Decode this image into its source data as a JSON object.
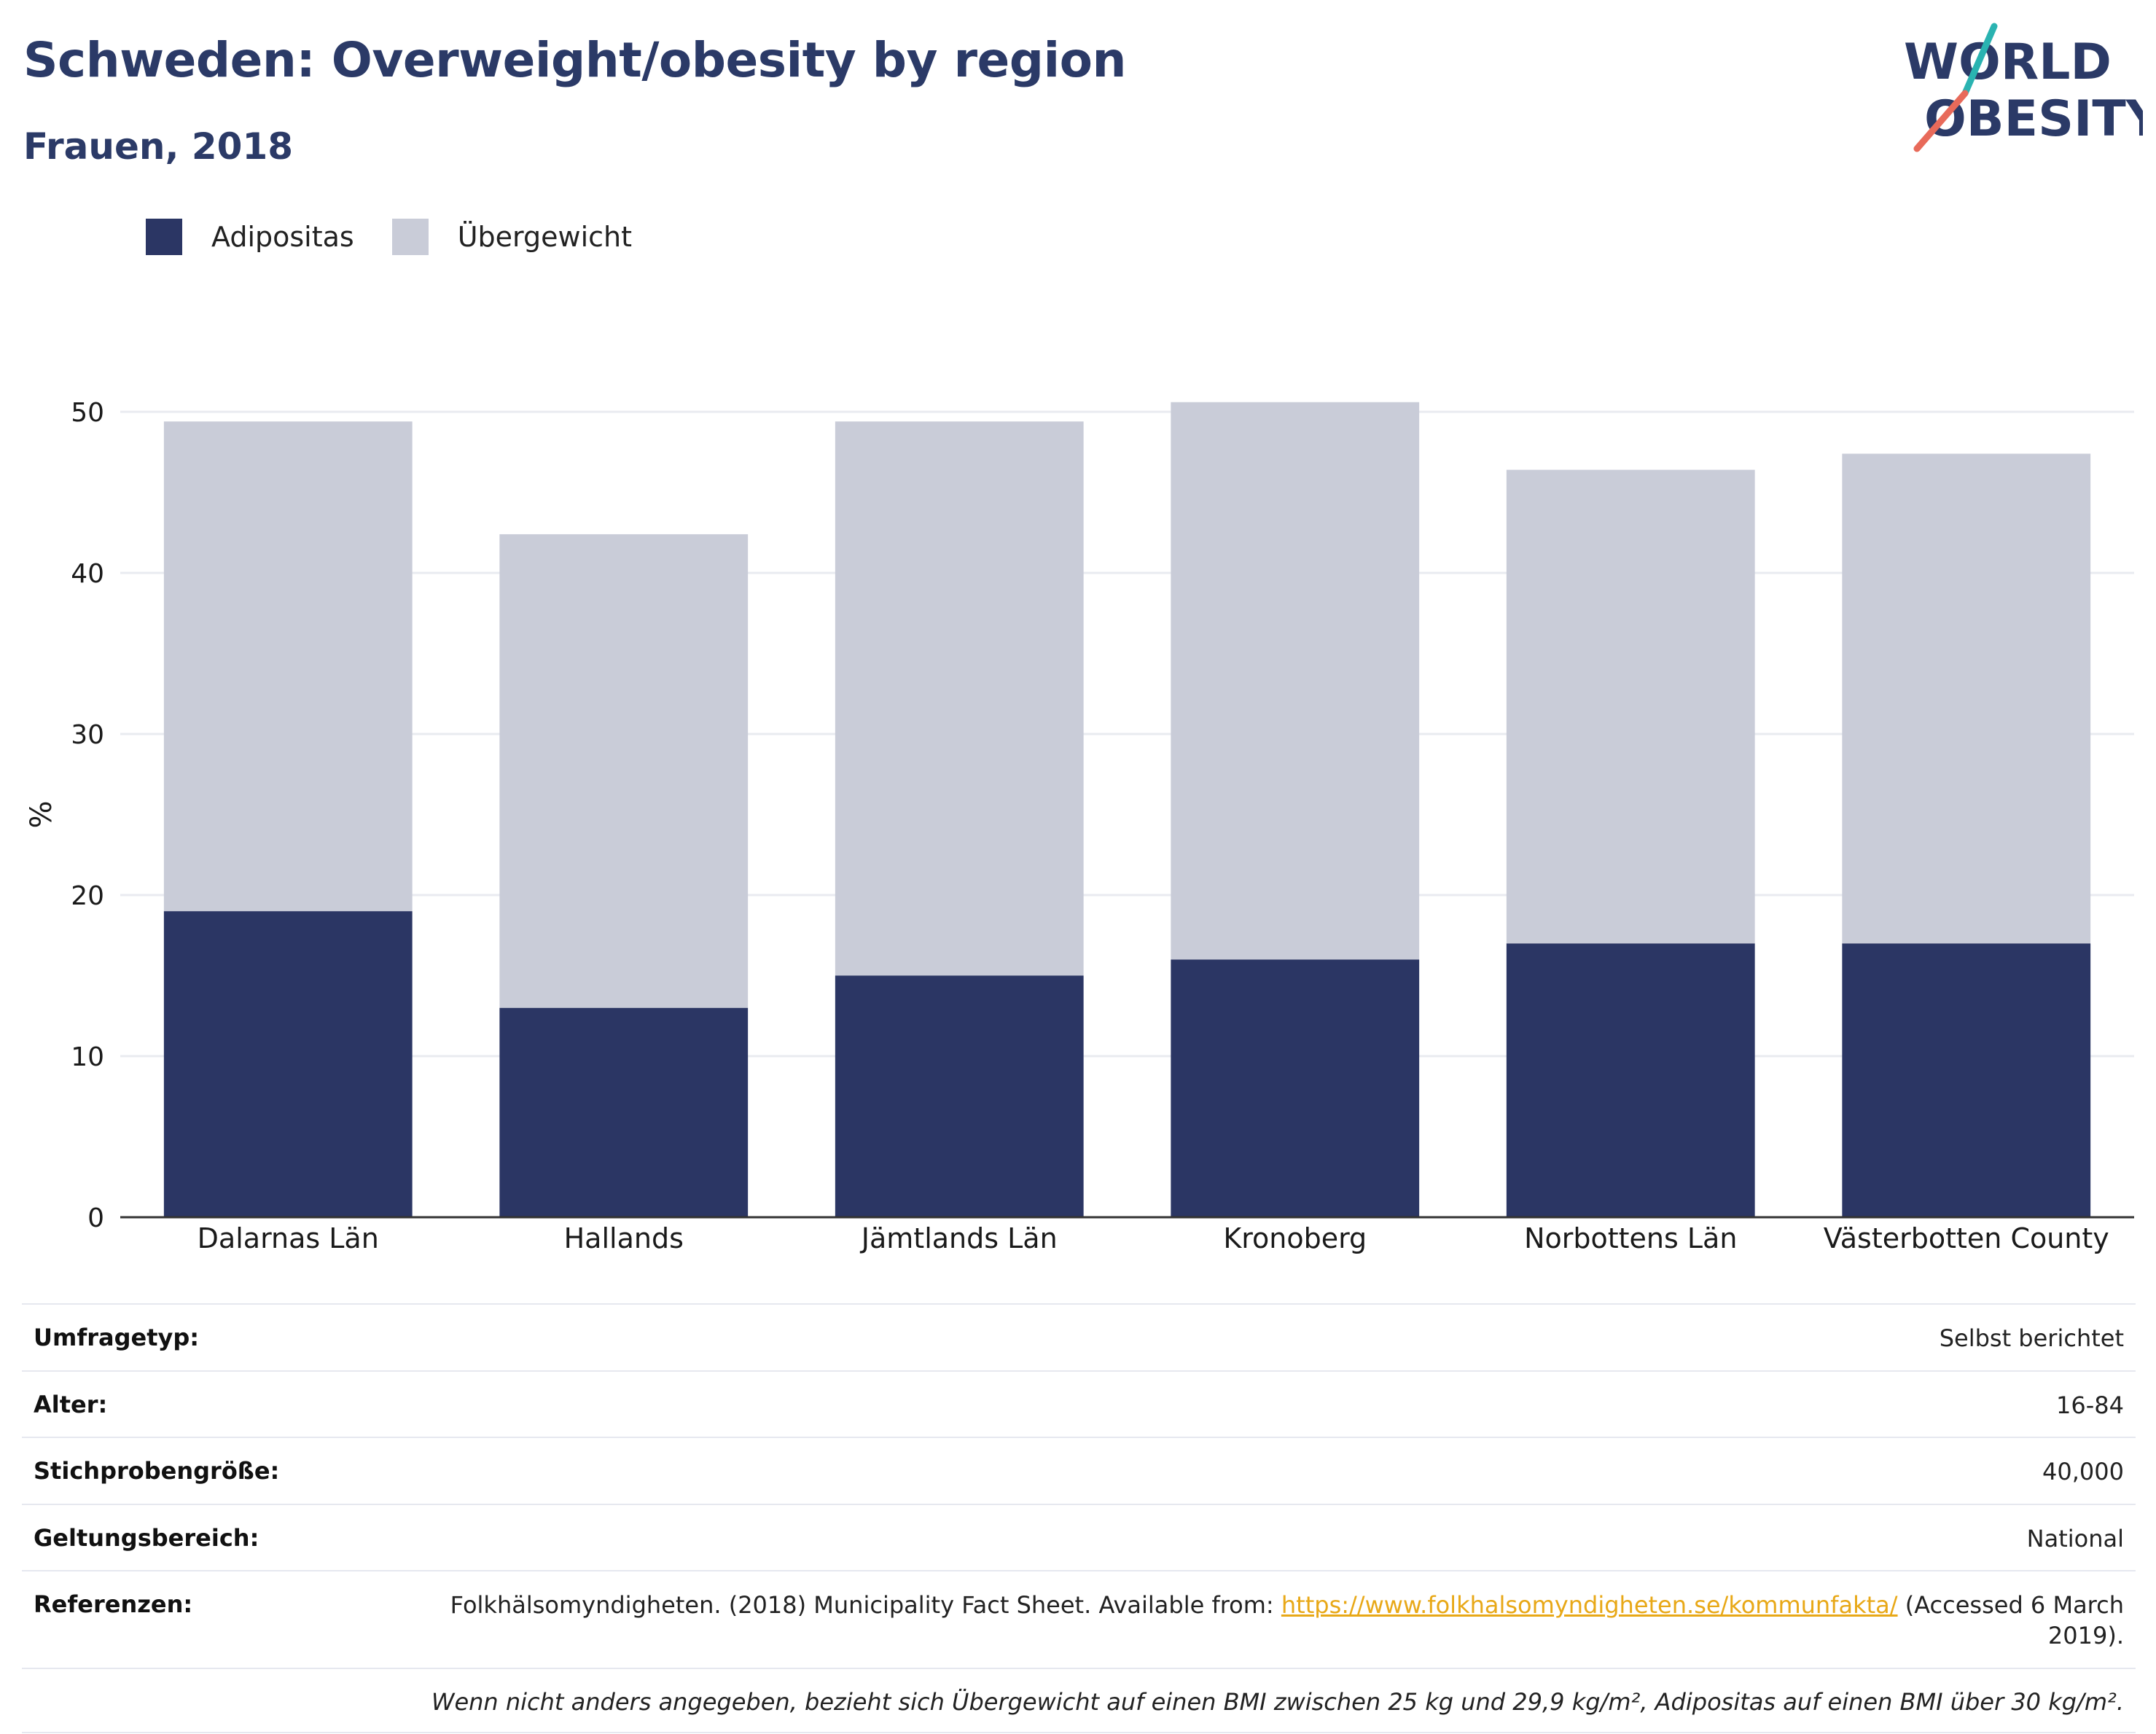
{
  "header": {
    "title": "Schweden: Overweight/obesity by region",
    "subtitle": "Frauen, 2018"
  },
  "logo": {
    "line1": "WORLD",
    "line2": "OBESITY",
    "colors": {
      "text": "#2b3a67",
      "slash_top": "#2ab3b1",
      "slash_bottom": "#e86a5a"
    }
  },
  "legend": [
    {
      "label": "Adipositas",
      "color": "#2b3664"
    },
    {
      "label": "Übergewicht",
      "color": "#c9ccd8"
    }
  ],
  "chart_data": {
    "type": "bar",
    "stacked": true,
    "categories": [
      "Dalarnas Län",
      "Hallands",
      "Jämtlands Län",
      "Kronoberg",
      "Norbottens Län",
      "Västerbotten County"
    ],
    "series": [
      {
        "name": "Adipositas",
        "color": "#2b3664",
        "values": [
          19,
          13,
          15,
          16,
          17,
          17
        ]
      },
      {
        "name": "Übergewicht",
        "color": "#c9ccd8",
        "values": [
          30.4,
          29.4,
          34.4,
          34.6,
          29.4,
          30.4
        ]
      }
    ],
    "ylabel": "%",
    "ylim": [
      0,
      50
    ],
    "yticks": [
      0,
      10,
      20,
      30,
      40,
      50
    ],
    "grid": true
  },
  "info": {
    "rows": [
      {
        "label": "Umfragetyp:",
        "value": "Selbst berichtet"
      },
      {
        "label": "Alter:",
        "value": "16-84"
      },
      {
        "label": "Stichprobengröße:",
        "value": "40,000"
      },
      {
        "label": "Geltungsbereich:",
        "value": "National"
      }
    ],
    "reference": {
      "label": "Referenzen:",
      "text_before": "Folkhälsomyndigheten. (2018) Municipality Fact Sheet. Available from: ",
      "link": "https://www.folkhalsomyndigheten.se/kommunfakta/",
      "text_after": " (Accessed 6 March 2019)."
    },
    "note": "Wenn nicht anders angegeben, bezieht sich Übergewicht auf einen BMI zwischen 25 kg und 29,9 kg/m², Adipositas auf einen BMI über 30 kg/m²."
  }
}
